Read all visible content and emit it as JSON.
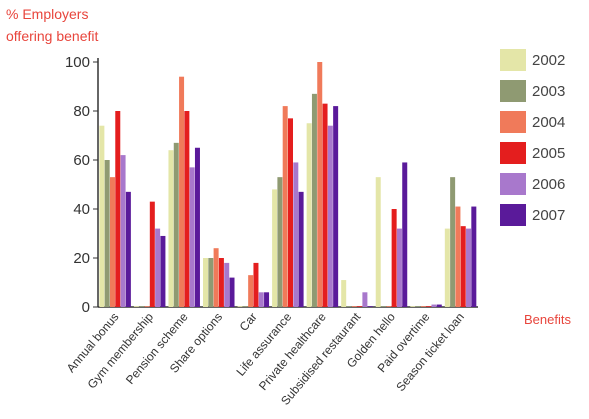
{
  "chart_data": {
    "type": "bar",
    "ylabel_lines": [
      "% Employers",
      "offering benefit"
    ],
    "xlabel": "Benefits",
    "ylim": [
      0,
      100
    ],
    "yticks": [
      0,
      20,
      40,
      60,
      80,
      100
    ],
    "categories": [
      "Annual bonus",
      "Gym membership",
      "Pension scheme",
      "Share options",
      "Car",
      "Life assurance",
      "Private healthcare",
      "Subsidised restaurant",
      "Golden hello",
      "Paid overtime",
      "Season ticket loan"
    ],
    "series": [
      {
        "name": "2002",
        "color": "#e4e6a8",
        "values": [
          74,
          0,
          64,
          20,
          0,
          48,
          75,
          11,
          53,
          0,
          32
        ]
      },
      {
        "name": "2003",
        "color": "#8f9a72",
        "values": [
          60,
          0,
          67,
          20,
          0,
          53,
          87,
          0,
          0,
          0,
          53
        ]
      },
      {
        "name": "2004",
        "color": "#f07a5a",
        "values": [
          53,
          0,
          94,
          24,
          13,
          82,
          100,
          0,
          0,
          0,
          41
        ]
      },
      {
        "name": "2005",
        "color": "#e41e1e",
        "values": [
          80,
          43,
          80,
          20,
          18,
          77,
          83,
          0,
          40,
          0,
          33
        ]
      },
      {
        "name": "2006",
        "color": "#a878cc",
        "values": [
          62,
          32,
          57,
          18,
          6,
          59,
          74,
          6,
          32,
          1,
          32
        ]
      },
      {
        "name": "2007",
        "color": "#5a1a9a",
        "values": [
          47,
          29,
          65,
          12,
          6,
          47,
          82,
          0,
          59,
          1,
          41
        ]
      }
    ]
  }
}
